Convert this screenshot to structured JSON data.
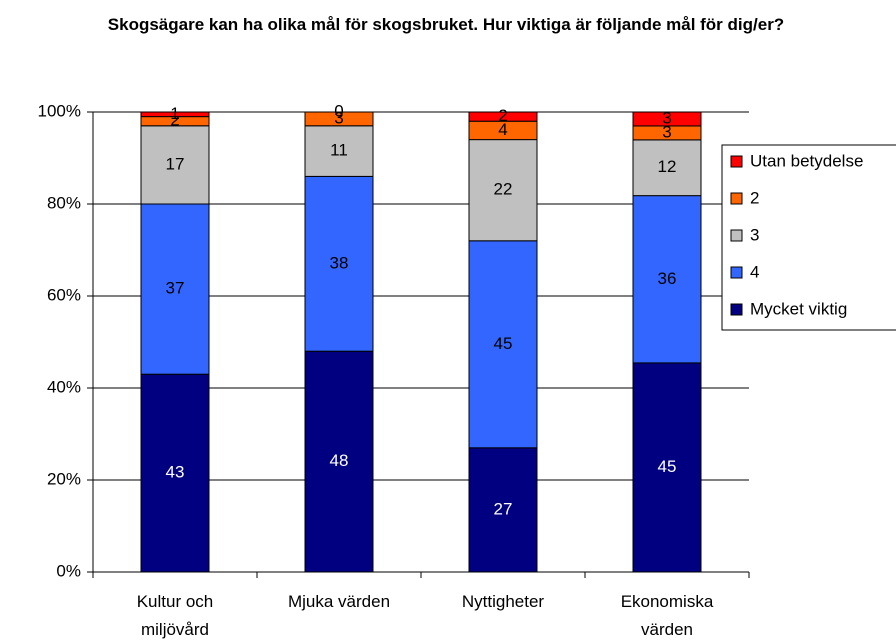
{
  "chart_data": {
    "type": "stacked_bar_100",
    "title": "Skogsägare kan ha olika mål för skogsbruket. Hur viktiga är följande mål för dig/er?",
    "categories": [
      "Kultur och miljövård",
      "Mjuka värden",
      "Nyttigheter",
      "Ekonomiska värden"
    ],
    "series": [
      {
        "name": "Mycket viktig",
        "color": "#000080",
        "values": [
          43,
          48,
          27,
          45
        ]
      },
      {
        "name": "4",
        "color": "#3366ff",
        "values": [
          37,
          38,
          45,
          36
        ]
      },
      {
        "name": "3",
        "color": "#c0c0c0",
        "values": [
          17,
          11,
          22,
          12
        ]
      },
      {
        "name": "2",
        "color": "#ff6600",
        "values": [
          2,
          3,
          4,
          3
        ]
      },
      {
        "name": "Utan betydelse",
        "color": "#ff0000",
        "values": [
          1,
          0,
          2,
          3
        ]
      }
    ],
    "ylim": [
      0,
      100
    ],
    "yticks": [
      {
        "value": 0,
        "label": "0%"
      },
      {
        "value": 20,
        "label": "20%"
      },
      {
        "value": 40,
        "label": "40%"
      },
      {
        "value": 60,
        "label": "60%"
      },
      {
        "value": 80,
        "label": "80%"
      },
      {
        "value": 100,
        "label": "100%"
      }
    ],
    "grid": true,
    "legend": "right"
  }
}
